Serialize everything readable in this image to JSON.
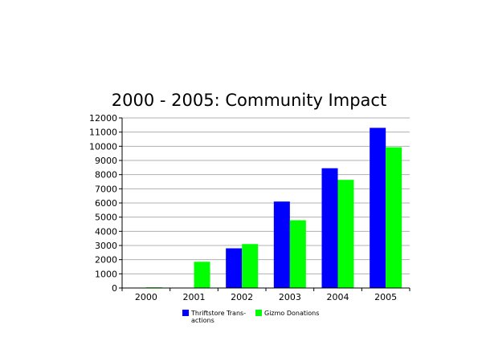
{
  "chart_data": {
    "type": "bar",
    "title": "2000 - 2005: Community Impact",
    "xlabel": "",
    "ylabel": "",
    "categories": [
      "2000",
      "2001",
      "2002",
      "2003",
      "2004",
      "2005"
    ],
    "ylim": [
      0,
      12000
    ],
    "yticks": [
      0,
      1000,
      2000,
      3000,
      4000,
      5000,
      6000,
      7000,
      8000,
      9000,
      10000,
      11000,
      12000
    ],
    "grid": true,
    "legend_position": "bottom-center",
    "series": [
      {
        "name": "Thriftstore Trans-\nactions",
        "name_lines": [
          "Thriftstore Trans-",
          "actions"
        ],
        "color": "#0000ff",
        "values": [
          0,
          0,
          2800,
          6100,
          8450,
          11300
        ]
      },
      {
        "name": "Gizmo Donations",
        "name_lines": [
          "Gizmo Donations"
        ],
        "color": "#00ff00",
        "values": [
          50,
          1850,
          3100,
          4780,
          7630,
          9930
        ]
      }
    ]
  }
}
